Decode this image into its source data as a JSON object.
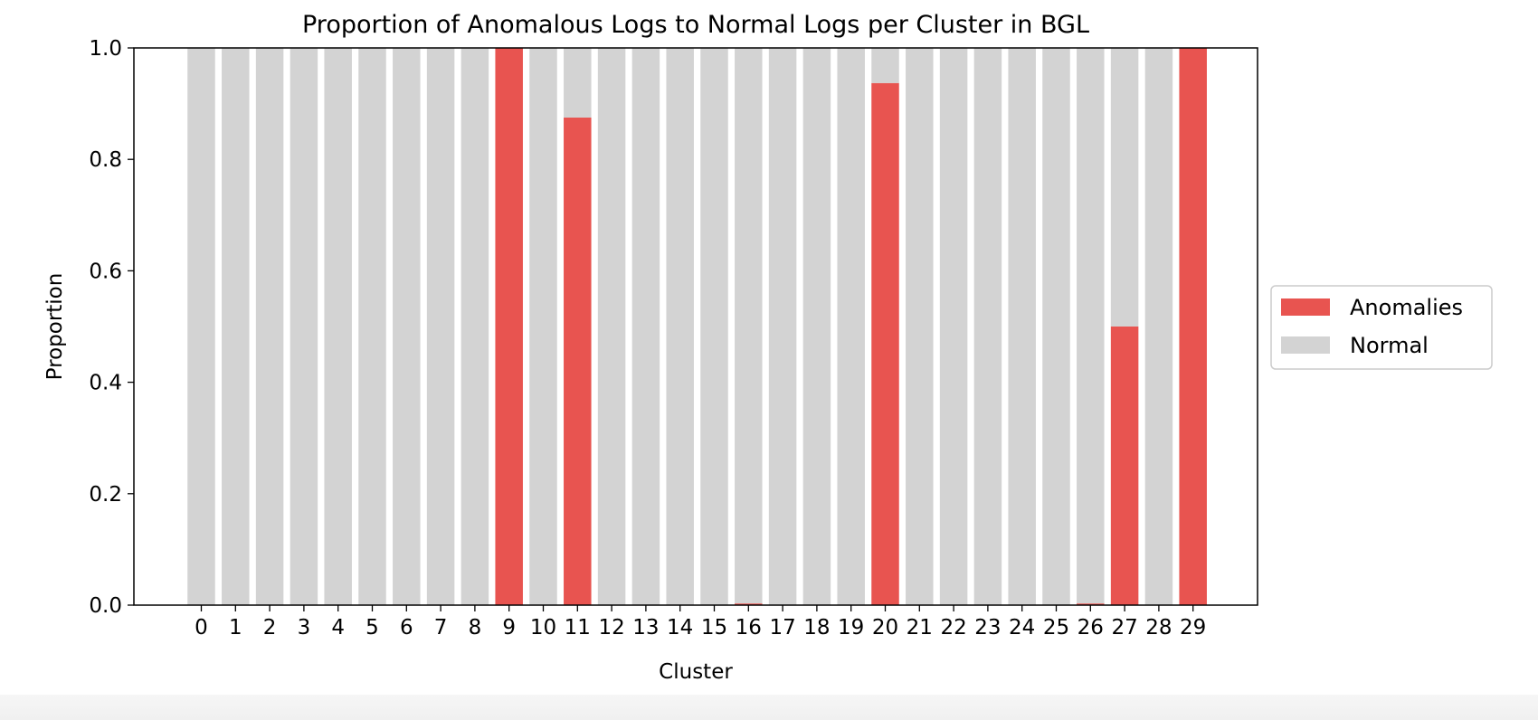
{
  "chart_data": {
    "type": "bar",
    "stacked": true,
    "title": "Proportion of Anomalous Logs to Normal Logs per Cluster in BGL",
    "xlabel": "Cluster",
    "ylabel": "Proportion",
    "ylim": [
      0,
      1.0
    ],
    "yticks": [
      "0.0",
      "0.2",
      "0.4",
      "0.6",
      "0.8",
      "1.0"
    ],
    "grid": false,
    "legend_position": "center-right-outside",
    "categories": [
      "0",
      "1",
      "2",
      "3",
      "4",
      "5",
      "6",
      "7",
      "8",
      "9",
      "10",
      "11",
      "12",
      "13",
      "14",
      "15",
      "16",
      "17",
      "18",
      "19",
      "20",
      "21",
      "22",
      "23",
      "24",
      "25",
      "26",
      "27",
      "28",
      "29"
    ],
    "series": [
      {
        "name": "Anomalies",
        "color": "#e85450",
        "values": [
          0,
          0,
          0,
          0,
          0,
          0,
          0,
          0,
          0,
          1.0,
          0,
          0.875,
          0,
          0,
          0,
          0,
          0.003,
          0,
          0,
          0,
          0.937,
          0,
          0,
          0,
          0,
          0,
          0.003,
          0.5,
          0,
          1.0
        ]
      },
      {
        "name": "Normal",
        "color": "#d3d3d3",
        "values": [
          1.0,
          1.0,
          1.0,
          1.0,
          1.0,
          1.0,
          1.0,
          1.0,
          1.0,
          0,
          1.0,
          0.125,
          1.0,
          1.0,
          1.0,
          1.0,
          0.997,
          1.0,
          1.0,
          1.0,
          0.063,
          1.0,
          1.0,
          1.0,
          1.0,
          1.0,
          0.997,
          0.5,
          1.0,
          0
        ]
      }
    ]
  }
}
